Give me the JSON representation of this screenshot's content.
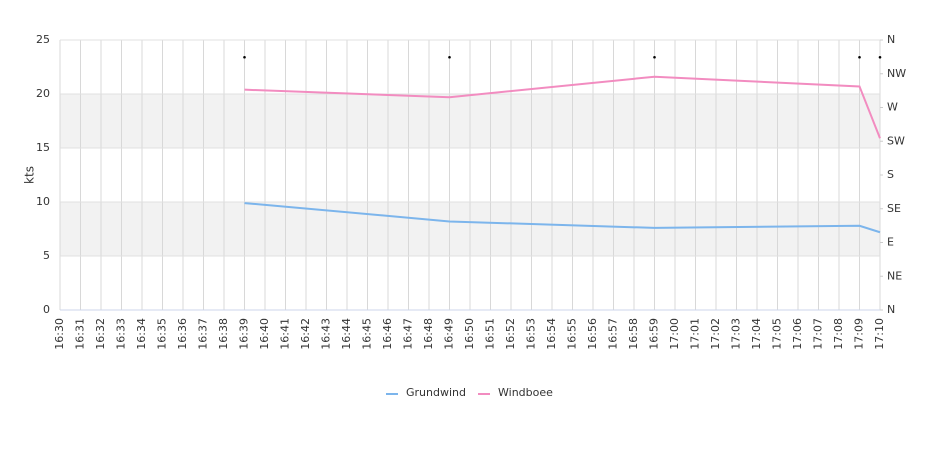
{
  "chart_data": {
    "type": "line",
    "categories": [
      "16:30",
      "16:31",
      "16:32",
      "16:33",
      "16:34",
      "16:35",
      "16:36",
      "16:37",
      "16:38",
      "16:39",
      "16:40",
      "16:41",
      "16:42",
      "16:43",
      "16:44",
      "16:45",
      "16:46",
      "16:47",
      "16:48",
      "16:49",
      "16:50",
      "16:51",
      "16:52",
      "16:53",
      "16:54",
      "16:55",
      "16:56",
      "16:57",
      "16:58",
      "16:59",
      "17:00",
      "17:01",
      "17:02",
      "17:03",
      "17:04",
      "17:05",
      "17:06",
      "17:07",
      "17:08",
      "17:09",
      "17:10"
    ],
    "y_label": "kts",
    "ylim": [
      0,
      25
    ],
    "yticks": [
      0,
      5,
      10,
      15,
      20,
      25
    ],
    "y2lim": [
      0,
      360
    ],
    "y2ticks": [
      {
        "value": 0,
        "label": "N"
      },
      {
        "value": 45,
        "label": "NE"
      },
      {
        "value": 90,
        "label": "E"
      },
      {
        "value": 135,
        "label": "SE"
      },
      {
        "value": 180,
        "label": "S"
      },
      {
        "value": 225,
        "label": "SW"
      },
      {
        "value": 270,
        "label": "W"
      },
      {
        "value": 315,
        "label": "NW"
      },
      {
        "value": 360,
        "label": "N"
      }
    ],
    "alternate_bands": true,
    "series": [
      {
        "name": "Grundwind",
        "color": "#7cb5ec",
        "x": [
          "16:39",
          "16:49",
          "16:59",
          "17:09",
          "17:10"
        ],
        "values": [
          9.9,
          8.2,
          7.6,
          7.8,
          7.2
        ]
      },
      {
        "name": "Windboee",
        "color": "#f28cc0",
        "x": [
          "16:39",
          "16:49",
          "16:59",
          "17:09",
          "17:10"
        ],
        "values": [
          20.4,
          19.7,
          21.6,
          20.7,
          15.9
        ]
      }
    ],
    "direction": {
      "axis": "y2",
      "color": "#000000",
      "x": [
        "16:39",
        "16:49",
        "16:59",
        "17:09",
        "17:10"
      ],
      "values": [
        337,
        337,
        337,
        337,
        337
      ]
    }
  }
}
